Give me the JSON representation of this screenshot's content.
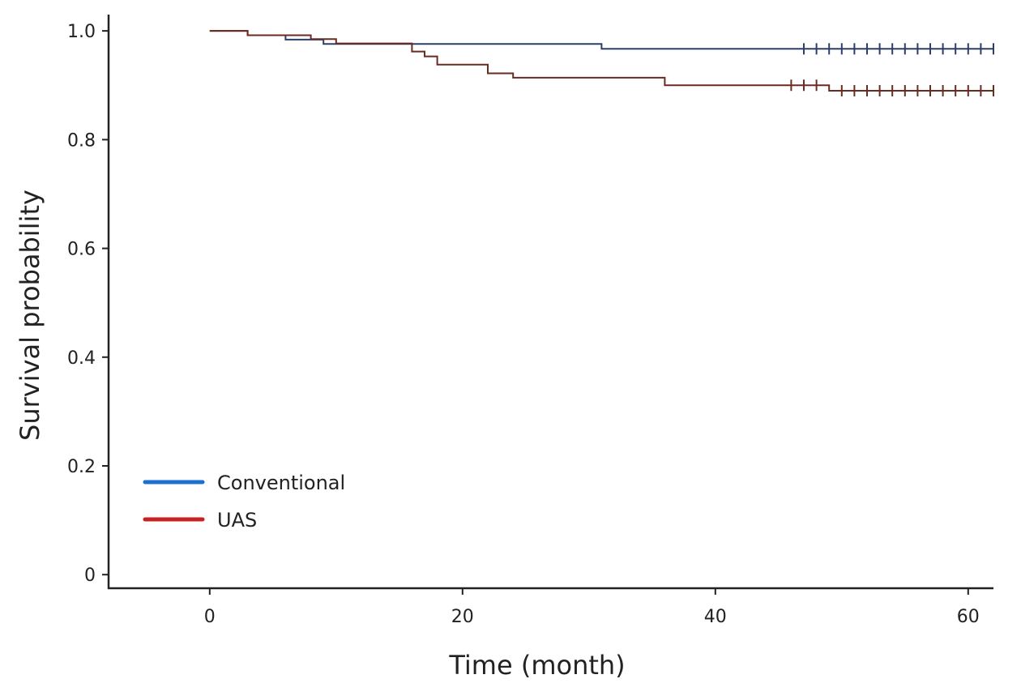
{
  "chart_data": {
    "type": "line",
    "subtype": "kaplan-meier step survival curve",
    "title": "",
    "xlabel": "Time (month)",
    "ylabel": "Survival probability",
    "xlim": [
      -8,
      62
    ],
    "ylim": [
      -0.025,
      1.03
    ],
    "xticks": [
      0,
      20,
      40,
      60
    ],
    "xtick_labels": [
      "0",
      "20",
      "40",
      "60"
    ],
    "yticks": [
      0,
      0.2,
      0.4,
      0.6,
      0.8,
      1.0
    ],
    "ytick_labels": [
      "0",
      "0.2",
      "0.4",
      "0.6",
      "0.8",
      "1.0"
    ],
    "grid": false,
    "legend_position": "lower-left",
    "series": [
      {
        "name": "Conventional",
        "legend_color": "#1f6fd1",
        "line_color": "#2b3f6b",
        "steps": [
          {
            "x": 0,
            "y": 1.0
          },
          {
            "x": 3,
            "y": 0.992
          },
          {
            "x": 6,
            "y": 0.984
          },
          {
            "x": 9,
            "y": 0.976
          },
          {
            "x": 31,
            "y": 0.967
          }
        ],
        "end_x": 62,
        "censored_x": [
          47,
          48,
          49,
          50,
          51,
          52,
          53,
          54,
          55,
          56,
          57,
          58,
          59,
          60,
          61,
          62
        ]
      },
      {
        "name": "UAS",
        "legend_color": "#c62222",
        "line_color": "#6b2a22",
        "steps": [
          {
            "x": 0,
            "y": 1.0
          },
          {
            "x": 3,
            "y": 0.992
          },
          {
            "x": 8,
            "y": 0.985
          },
          {
            "x": 10,
            "y": 0.977
          },
          {
            "x": 16,
            "y": 0.962
          },
          {
            "x": 17,
            "y": 0.953
          },
          {
            "x": 18,
            "y": 0.938
          },
          {
            "x": 22,
            "y": 0.922
          },
          {
            "x": 24,
            "y": 0.914
          },
          {
            "x": 36,
            "y": 0.9
          },
          {
            "x": 49,
            "y": 0.89
          }
        ],
        "end_x": 62,
        "censored_x": [
          46,
          47,
          48,
          50,
          51,
          52,
          53,
          54,
          55,
          56,
          57,
          58,
          59,
          60,
          61,
          62
        ]
      }
    ]
  }
}
